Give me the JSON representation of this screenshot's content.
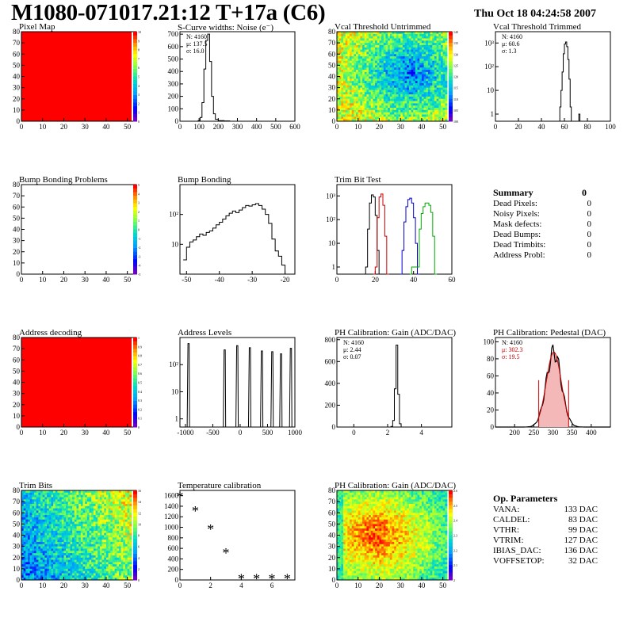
{
  "header": {
    "title": "M1080-071017.21:12 T+17a (C6)",
    "date": "Thu Oct 18 04:24:58 2007"
  },
  "summary": {
    "title": "Summary",
    "total": "0",
    "rows": [
      {
        "label": "Dead Pixels:",
        "value": "0"
      },
      {
        "label": "Noisy Pixels:",
        "value": "0"
      },
      {
        "label": "Mask defects:",
        "value": "0"
      },
      {
        "label": "Dead Bumps:",
        "value": "0"
      },
      {
        "label": "Dead Trimbits:",
        "value": "0"
      },
      {
        "label": "Address Probl:",
        "value": "0"
      }
    ]
  },
  "op_params": {
    "title": "Op. Parameters",
    "rows": [
      {
        "label": "VANA:",
        "value": "133 DAC"
      },
      {
        "label": "CALDEL:",
        "value": "83 DAC"
      },
      {
        "label": "VTHR:",
        "value": "99 DAC"
      },
      {
        "label": "VTRIM:",
        "value": "127 DAC"
      },
      {
        "label": "IBIAS_DAC:",
        "value": "136 DAC"
      },
      {
        "label": "VOFFSETOP:",
        "value": "32 DAC"
      }
    ]
  },
  "chart_data": [
    {
      "id": "pixel-map",
      "type": "heatmap",
      "title": "Pixel Map",
      "x_ticks": [
        "0",
        "10",
        "20",
        "30",
        "40",
        "50"
      ],
      "y_ticks": [
        "0",
        "10",
        "20",
        "30",
        "40",
        "50",
        "60",
        "70",
        "80"
      ],
      "xlim": [
        0,
        52
      ],
      "ylim": [
        0,
        80
      ],
      "fill": "uniform-max",
      "fill_color": "#ff0000",
      "z_ticks": [
        "10",
        "9",
        "8",
        "7",
        "6",
        "5",
        "4",
        "3",
        "2",
        "1",
        "0"
      ]
    },
    {
      "id": "scurve",
      "type": "histogram",
      "title": "S-Curve widths: Noise (e⁻)",
      "x_ticks": [
        "0",
        "100",
        "200",
        "300",
        "400",
        "500",
        "600"
      ],
      "xlim": [
        0,
        600
      ],
      "y_ticks": [
        "0",
        "100",
        "200",
        "300",
        "400",
        "500",
        "600",
        "700"
      ],
      "ylim": [
        0,
        720
      ],
      "stats": [
        "N: 4160",
        "μ: 137.5",
        "σ: 16.0"
      ],
      "bins": [
        [
          80,
          0
        ],
        [
          95,
          5
        ],
        [
          105,
          30
        ],
        [
          115,
          150
        ],
        [
          125,
          420
        ],
        [
          135,
          650
        ],
        [
          145,
          700
        ],
        [
          155,
          480
        ],
        [
          165,
          200
        ],
        [
          175,
          60
        ],
        [
          185,
          15
        ],
        [
          200,
          5
        ],
        [
          230,
          2
        ],
        [
          260,
          0
        ]
      ]
    },
    {
      "id": "vcal-untrimmed",
      "type": "heatmap",
      "title": "Vcal Threshold Untrimmed",
      "x_ticks": [
        "0",
        "10",
        "20",
        "30",
        "40",
        "50"
      ],
      "y_ticks": [
        "0",
        "10",
        "20",
        "30",
        "40",
        "50",
        "60",
        "70",
        "80"
      ],
      "xlim": [
        0,
        52
      ],
      "ylim": [
        0,
        80
      ],
      "fill": "noise-blue-center",
      "z_ticks": [
        "140",
        "135",
        "130",
        "125",
        "120",
        "115",
        "110",
        "105",
        "100"
      ]
    },
    {
      "id": "vcal-trimmed",
      "type": "histogram",
      "log": true,
      "title": "Vcal Threshold Trimmed",
      "x_ticks": [
        "0",
        "20",
        "40",
        "60",
        "80",
        "100"
      ],
      "xlim": [
        0,
        100
      ],
      "y_ticks": [
        "1",
        "10",
        "10²",
        "10³"
      ],
      "ylim": [
        0.5,
        3000
      ],
      "stats": [
        "N: 4160",
        "μ: 60.6",
        "σ:  1.3"
      ],
      "bins": [
        [
          54,
          0
        ],
        [
          56,
          2
        ],
        [
          57,
          10
        ],
        [
          58,
          60
        ],
        [
          59,
          350
        ],
        [
          60,
          900
        ],
        [
          61,
          1100
        ],
        [
          62,
          700
        ],
        [
          63,
          200
        ],
        [
          64,
          30
        ],
        [
          65,
          2
        ],
        [
          66,
          0
        ],
        [
          72,
          0
        ],
        [
          72.5,
          1
        ],
        [
          73.5,
          0
        ]
      ]
    },
    {
      "id": "bump-problems",
      "type": "heatmap",
      "title": "Bump Bonding Problems",
      "x_ticks": [
        "0",
        "10",
        "20",
        "30",
        "40",
        "50"
      ],
      "y_ticks": [
        "0",
        "10",
        "20",
        "30",
        "40",
        "50",
        "60",
        "70",
        "80"
      ],
      "xlim": [
        0,
        52
      ],
      "ylim": [
        0,
        80
      ],
      "fill": "empty",
      "z_ticks": [
        "5",
        "4",
        "3",
        "2",
        "1",
        "0",
        "-1",
        "-2",
        "-3",
        "-4",
        "-5"
      ]
    },
    {
      "id": "bump-bonding",
      "type": "histogram",
      "log": true,
      "title": "Bump Bonding",
      "x_ticks": [
        "-50",
        "-40",
        "-30",
        "-20"
      ],
      "xlim": [
        -52,
        -17
      ],
      "y_ticks": [
        "10",
        "10²"
      ],
      "ylim": [
        1,
        1000
      ],
      "bins": [
        [
          -51,
          3
        ],
        [
          -50,
          8
        ],
        [
          -49,
          12
        ],
        [
          -48,
          14
        ],
        [
          -47,
          18
        ],
        [
          -46,
          22
        ],
        [
          -45,
          20
        ],
        [
          -44,
          25
        ],
        [
          -43,
          28
        ],
        [
          -42,
          35
        ],
        [
          -41,
          45
        ],
        [
          -40,
          55
        ],
        [
          -39,
          70
        ],
        [
          -38,
          90
        ],
        [
          -37,
          110
        ],
        [
          -36,
          130
        ],
        [
          -35,
          115
        ],
        [
          -34,
          140
        ],
        [
          -33,
          170
        ],
        [
          -32,
          200
        ],
        [
          -31,
          190
        ],
        [
          -30,
          210
        ],
        [
          -29,
          230
        ],
        [
          -28,
          200
        ],
        [
          -27,
          150
        ],
        [
          -26,
          100
        ],
        [
          -25,
          50
        ],
        [
          -24,
          15
        ],
        [
          -23,
          6
        ],
        [
          -22,
          4
        ],
        [
          -21,
          2
        ],
        [
          -20,
          1
        ]
      ]
    },
    {
      "id": "trim-bit-test",
      "type": "histogram",
      "log": true,
      "title": "Trim Bit Test",
      "x_ticks": [
        "0",
        "20",
        "40",
        "60"
      ],
      "xlim": [
        0,
        60
      ],
      "y_ticks": [
        "1",
        "10",
        "10²",
        "10³"
      ],
      "ylim": [
        0.5,
        3000
      ],
      "series": [
        {
          "name": "",
          "color": "#000000",
          "bins": [
            [
              14,
              0
            ],
            [
              15,
              1
            ],
            [
              16,
              40
            ],
            [
              17,
              500
            ],
            [
              18,
              1100
            ],
            [
              19,
              900
            ],
            [
              20,
              150
            ],
            [
              21,
              5
            ],
            [
              22,
              0
            ]
          ]
        },
        {
          "name": "",
          "color": "#cc0000",
          "bins": [
            [
              19,
              0
            ],
            [
              20,
              1
            ],
            [
              21,
              120
            ],
            [
              22,
              900
            ],
            [
              23,
              1200
            ],
            [
              24,
              400
            ],
            [
              25,
              20
            ],
            [
              26,
              0
            ]
          ]
        },
        {
          "name": "",
          "color": "#0000cc",
          "bins": [
            [
              33,
              0
            ],
            [
              34,
              5
            ],
            [
              35,
              80
            ],
            [
              36,
              350
            ],
            [
              37,
              700
            ],
            [
              38,
              800
            ],
            [
              39,
              500
            ],
            [
              40,
              120
            ],
            [
              41,
              10
            ],
            [
              42,
              0
            ]
          ]
        },
        {
          "name": "",
          "color": "#00aa00",
          "bins": [
            [
              38,
              0
            ],
            [
              39,
              1
            ],
            [
              40,
              1
            ],
            [
              41,
              1
            ],
            [
              42,
              1
            ],
            [
              43,
              40
            ],
            [
              44,
              180
            ],
            [
              45,
              350
            ],
            [
              46,
              500
            ],
            [
              47,
              500
            ],
            [
              48,
              400
            ],
            [
              49,
              200
            ],
            [
              50,
              20
            ],
            [
              51,
              0
            ]
          ]
        }
      ]
    },
    {
      "id": "address-decoding",
      "type": "heatmap",
      "title": "Address decoding",
      "x_ticks": [
        "0",
        "10",
        "20",
        "30",
        "40",
        "50"
      ],
      "y_ticks": [
        "0",
        "10",
        "20",
        "30",
        "40",
        "50",
        "60",
        "70",
        "80"
      ],
      "xlim": [
        0,
        52
      ],
      "ylim": [
        0,
        80
      ],
      "fill": "uniform-max",
      "fill_color": "#ff0000",
      "z_ticks": [
        "1",
        "0.9",
        "0.8",
        "0.7",
        "0.6",
        "0.5",
        "0.4",
        "0.3",
        "0.2",
        "0.1",
        "0"
      ]
    },
    {
      "id": "address-levels",
      "type": "histogram",
      "log": true,
      "title": "Address Levels",
      "x_ticks": [
        "-1000",
        "-500",
        "0",
        "500",
        "1000"
      ],
      "xlim": [
        -1100,
        1000
      ],
      "y_ticks": [
        "1",
        "10",
        "10²"
      ],
      "ylim": [
        0.5,
        1000
      ],
      "peaks": [
        [
          -950,
          600
        ],
        [
          -290,
          350
        ],
        [
          -60,
          500
        ],
        [
          170,
          420
        ],
        [
          390,
          320
        ],
        [
          580,
          300
        ],
        [
          740,
          250
        ],
        [
          920,
          400
        ]
      ]
    },
    {
      "id": "ph-gain",
      "type": "histogram",
      "title": "PH Calibration: Gain (ADC/DAC)",
      "x_ticks": [
        "0",
        "2",
        "4"
      ],
      "xlim": [
        -1,
        5.8
      ],
      "y_ticks": [
        "0",
        "200",
        "400",
        "600",
        "800"
      ],
      "ylim": [
        0,
        820
      ],
      "stats": [
        "N: 4160",
        "μ: 2.44",
        "σ: 0.07"
      ],
      "bins": [
        [
          2.1,
          0
        ],
        [
          2.2,
          5
        ],
        [
          2.3,
          60
        ],
        [
          2.4,
          350
        ],
        [
          2.5,
          750
        ],
        [
          2.6,
          300
        ],
        [
          2.7,
          30
        ],
        [
          2.8,
          0
        ]
      ]
    },
    {
      "id": "ph-pedestal",
      "type": "histogram",
      "title": "PH Calibration: Pedestal (DAC)",
      "x_ticks": [
        "200",
        "250",
        "300",
        "350",
        "400"
      ],
      "xlim": [
        150,
        450
      ],
      "y_ticks": [
        "0",
        "20",
        "40",
        "60",
        "80",
        "100"
      ],
      "ylim": [
        0,
        105
      ],
      "stats": [
        "N: 4160",
        "μ: 302.3",
        "σ: 19.5"
      ],
      "fit": {
        "mean": 302.3,
        "sigma": 19.5,
        "amp": 88,
        "cut_low": 263,
        "cut_high": 341
      }
    },
    {
      "id": "trim-bits",
      "type": "heatmap",
      "title": "Trim Bits",
      "x_ticks": [
        "0",
        "10",
        "20",
        "30",
        "40",
        "50"
      ],
      "y_ticks": [
        "0",
        "10",
        "20",
        "30",
        "40",
        "50",
        "60",
        "70",
        "80"
      ],
      "xlim": [
        0,
        52
      ],
      "ylim": [
        0,
        80
      ],
      "fill": "noise-trim",
      "z_ticks": [
        "16",
        "14",
        "12",
        "10",
        "8",
        "6",
        "4",
        "2",
        "0"
      ]
    },
    {
      "id": "temperature",
      "type": "scatter",
      "title": "Temperature calibration",
      "x_ticks": [
        "0",
        "2",
        "4",
        "6"
      ],
      "xlim": [
        0,
        7.5
      ],
      "y_ticks": [
        "0",
        "200",
        "400",
        "600",
        "800",
        "1000",
        "1200",
        "1400",
        "1600"
      ],
      "ylim": [
        0,
        1700
      ],
      "points": [
        [
          0,
          1580
        ],
        [
          1,
          1310
        ],
        [
          2,
          960
        ],
        [
          3,
          510
        ],
        [
          4,
          25
        ],
        [
          5,
          20
        ],
        [
          6,
          20
        ],
        [
          7,
          22
        ]
      ]
    },
    {
      "id": "ph-gain-map",
      "type": "heatmap",
      "title": "PH Calibration: Gain (ADC/DAC)",
      "x_ticks": [
        "0",
        "10",
        "20",
        "30",
        "40",
        "50"
      ],
      "y_ticks": [
        "0",
        "10",
        "20",
        "30",
        "40",
        "50",
        "60",
        "70",
        "80"
      ],
      "xlim": [
        0,
        52
      ],
      "ylim": [
        0,
        80
      ],
      "fill": "noise-gain",
      "z_ticks": [
        "2.6",
        "2.5",
        "2.4",
        "2.3",
        "2.2",
        "2.1",
        "2"
      ]
    }
  ]
}
